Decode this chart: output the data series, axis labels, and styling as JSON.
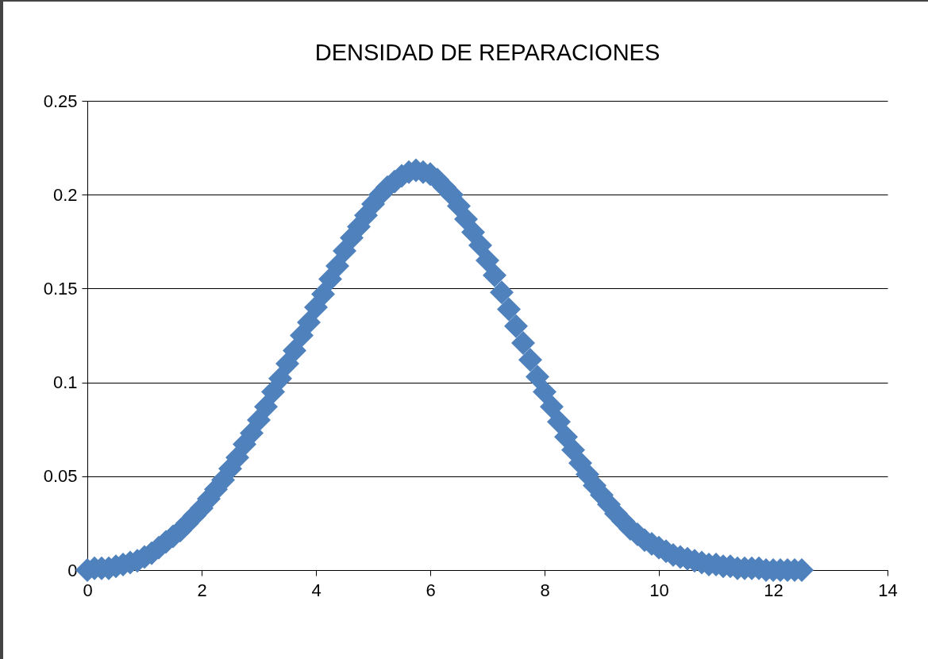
{
  "chart_data": {
    "type": "scatter",
    "title": "DENSIDAD DE REPARACIONES",
    "x": [
      0,
      0.125,
      0.25,
      0.375,
      0.5,
      0.625,
      0.75,
      0.875,
      1,
      1.125,
      1.25,
      1.375,
      1.5,
      1.625,
      1.75,
      1.875,
      2,
      2.125,
      2.25,
      2.375,
      2.5,
      2.625,
      2.75,
      2.875,
      3,
      3.125,
      3.25,
      3.375,
      3.5,
      3.625,
      3.75,
      3.875,
      4,
      4.125,
      4.25,
      4.375,
      4.5,
      4.625,
      4.75,
      4.875,
      5,
      5.125,
      5.25,
      5.375,
      5.5,
      5.625,
      5.75,
      5.875,
      6,
      6.125,
      6.25,
      6.375,
      6.5,
      6.625,
      6.75,
      6.875,
      7,
      7.125,
      7.25,
      7.375,
      7.5,
      7.625,
      7.75,
      7.875,
      8,
      8.125,
      8.25,
      8.375,
      8.5,
      8.625,
      8.75,
      8.875,
      9,
      9.125,
      9.25,
      9.375,
      9.5,
      9.625,
      9.75,
      9.875,
      10,
      10.125,
      10.25,
      10.375,
      10.5,
      10.625,
      10.75,
      10.875,
      11,
      11.125,
      11.25,
      11.375,
      11.5,
      11.625,
      11.75,
      11.875,
      12,
      12.125,
      12.25,
      12.375,
      12.5
    ],
    "series": [
      {
        "color": "#4f81bd",
        "values": [
          0,
          0.001,
          0.001,
          0.001,
          0.002,
          0.003,
          0.004,
          0.005,
          0.007,
          0.009,
          0.012,
          0.015,
          0.018,
          0.021,
          0.025,
          0.029,
          0.033,
          0.038,
          0.043,
          0.048,
          0.054,
          0.06,
          0.067,
          0.073,
          0.08,
          0.087,
          0.095,
          0.102,
          0.11,
          0.117,
          0.125,
          0.132,
          0.14,
          0.147,
          0.155,
          0.162,
          0.17,
          0.177,
          0.183,
          0.189,
          0.195,
          0.2,
          0.204,
          0.207,
          0.21,
          0.212,
          0.213,
          0.212,
          0.211,
          0.208,
          0.204,
          0.2,
          0.194,
          0.187,
          0.18,
          0.173,
          0.165,
          0.157,
          0.148,
          0.139,
          0.13,
          0.121,
          0.112,
          0.103,
          0.095,
          0.087,
          0.079,
          0.071,
          0.064,
          0.057,
          0.051,
          0.045,
          0.04,
          0.035,
          0.03,
          0.026,
          0.022,
          0.019,
          0.016,
          0.014,
          0.012,
          0.01,
          0.008,
          0.007,
          0.006,
          0.005,
          0.004,
          0.003,
          0.003,
          0.002,
          0.002,
          0.001,
          0.001,
          0.001,
          0.001,
          0,
          0,
          0,
          0,
          0,
          0
        ]
      }
    ],
    "xlim": [
      0,
      14
    ],
    "xticks": [
      0,
      2,
      4,
      6,
      8,
      10,
      12,
      14
    ],
    "ylim": [
      0,
      0.25
    ],
    "yticks": [
      0,
      0.05,
      0.1,
      0.15,
      0.2,
      0.25
    ],
    "grid": "y",
    "marker": "diamond"
  }
}
